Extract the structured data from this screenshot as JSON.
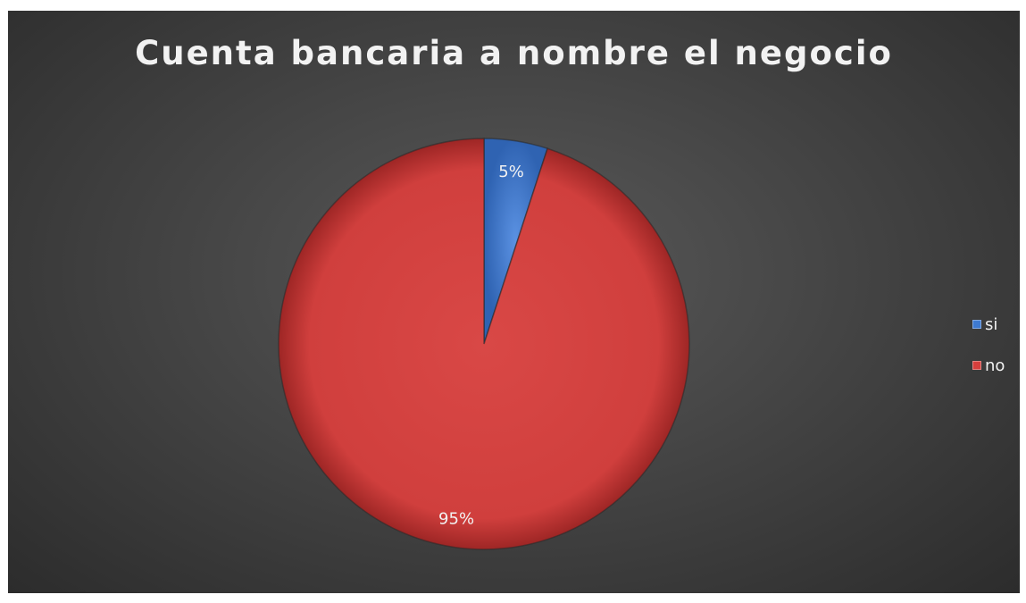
{
  "chart_data": {
    "type": "pie",
    "title": "Cuenta bancaria a nombre el negocio",
    "slices": [
      {
        "label": "si",
        "value": 5,
        "data_label": "5%",
        "color": "#3e7ad1"
      },
      {
        "label": "no",
        "value": 95,
        "data_label": "95%",
        "color": "#d63f3d"
      }
    ],
    "legend_position": "right",
    "background": "#474747"
  }
}
